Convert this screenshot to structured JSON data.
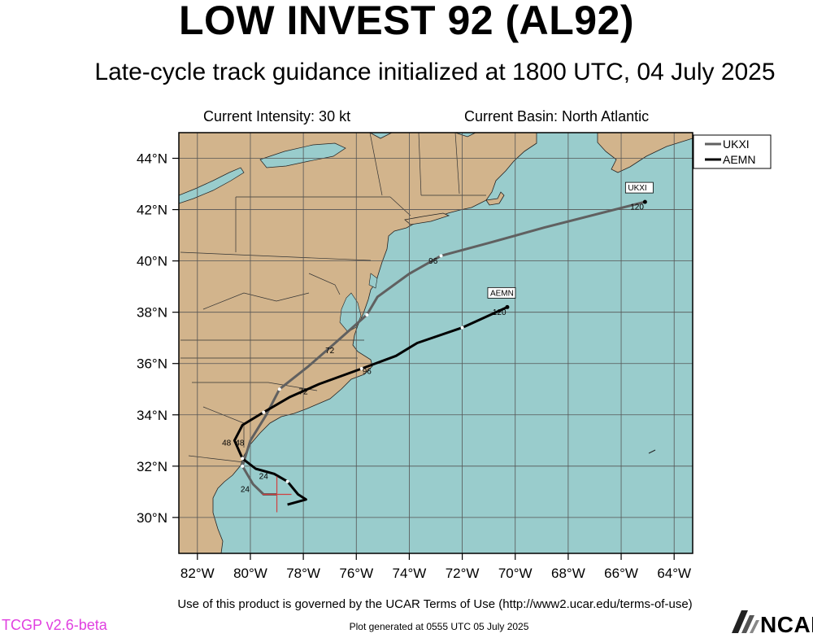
{
  "title": "LOW INVEST 92 (AL92)",
  "subtitle": "Late-cycle track guidance initialized at 1800 UTC, 04 July 2025",
  "current_intensity": "Current Intensity: 30 kt",
  "current_basin": "Current Basin: North Atlantic",
  "footer_terms": "Use of this product is governed by the UCAR Terms of Use (http://www2.ucar.edu/terms-of-use)",
  "footer_generated": "Plot generated at 0555 UTC   05 July 2025",
  "version": "TCGP v2.6-beta",
  "logo_text": "NCAR",
  "colors": {
    "land": "#d2b48c",
    "ocean": "#99cccc",
    "ukxi": "#606060",
    "aemn": "#000000",
    "version": "#e040e0"
  },
  "chart_data": {
    "type": "map-track",
    "lon_ticks": [
      {
        "value": -82,
        "label": "82°W"
      },
      {
        "value": -80,
        "label": "80°W"
      },
      {
        "value": -78,
        "label": "78°W"
      },
      {
        "value": -76,
        "label": "76°W"
      },
      {
        "value": -74,
        "label": "74°W"
      },
      {
        "value": -72,
        "label": "72°W"
      },
      {
        "value": -70,
        "label": "70°W"
      },
      {
        "value": -68,
        "label": "68°W"
      },
      {
        "value": -66,
        "label": "66°W"
      },
      {
        "value": -64,
        "label": "64°W"
      }
    ],
    "lat_ticks": [
      {
        "value": 44,
        "label": "44°N"
      },
      {
        "value": 42,
        "label": "42°N"
      },
      {
        "value": 40,
        "label": "40°N"
      },
      {
        "value": 38,
        "label": "38°N"
      },
      {
        "value": 36,
        "label": "36°N"
      },
      {
        "value": 34,
        "label": "34°N"
      },
      {
        "value": 32,
        "label": "32°N"
      },
      {
        "value": 30,
        "label": "30°N"
      }
    ],
    "lon_range": [
      -82.7,
      -63.3
    ],
    "lat_range": [
      28.6,
      45.0
    ],
    "initial_position": {
      "lon": -79.0,
      "lat": 30.9
    },
    "legend": [
      "UKXI",
      "AEMN"
    ],
    "series": [
      {
        "name": "UKXI",
        "color": "#606060",
        "points": [
          [
            -79.0,
            30.9
          ],
          [
            -79.5,
            30.9
          ],
          [
            -79.9,
            31.3
          ],
          [
            -80.3,
            32.0
          ],
          [
            -80.0,
            33.0
          ],
          [
            -79.4,
            34.0
          ],
          [
            -78.9,
            35.0
          ],
          [
            -77.8,
            35.9
          ],
          [
            -76.8,
            36.8
          ],
          [
            -75.6,
            37.9
          ],
          [
            -75.2,
            38.6
          ],
          [
            -74.0,
            39.5
          ],
          [
            -72.8,
            40.2
          ],
          [
            -71.0,
            40.7
          ],
          [
            -68.9,
            41.3
          ],
          [
            -65.1,
            42.3
          ]
        ],
        "hour_labels": [
          {
            "text": "24",
            "lon": -80.2,
            "lat": 31.0
          },
          {
            "text": "48",
            "lon": -80.4,
            "lat": 32.8
          },
          {
            "text": "72",
            "lon": -77.0,
            "lat": 36.4
          },
          {
            "text": "96",
            "lon": -73.1,
            "lat": 39.9
          },
          {
            "text": "120",
            "lon": -65.4,
            "lat": 42.0
          }
        ],
        "end_tag": "UKXI"
      },
      {
        "name": "AEMN",
        "color": "#000000",
        "points": [
          [
            -78.6,
            30.5
          ],
          [
            -77.9,
            30.7
          ],
          [
            -78.2,
            30.9
          ],
          [
            -78.6,
            31.4
          ],
          [
            -79.1,
            31.7
          ],
          [
            -79.8,
            31.9
          ],
          [
            -80.3,
            32.3
          ],
          [
            -80.6,
            33.0
          ],
          [
            -80.3,
            33.6
          ],
          [
            -79.5,
            34.1
          ],
          [
            -78.5,
            34.7
          ],
          [
            -77.4,
            35.2
          ],
          [
            -75.8,
            35.8
          ],
          [
            -74.5,
            36.3
          ],
          [
            -73.7,
            36.8
          ],
          [
            -72.0,
            37.4
          ],
          [
            -70.3,
            38.2
          ]
        ],
        "hour_labels": [
          {
            "text": "24",
            "lon": -79.5,
            "lat": 31.5
          },
          {
            "text": "48",
            "lon": -80.9,
            "lat": 32.8
          },
          {
            "text": "72",
            "lon": -78.0,
            "lat": 34.8
          },
          {
            "text": "96",
            "lon": -75.6,
            "lat": 35.6
          },
          {
            "text": "120",
            "lon": -70.6,
            "lat": 37.9
          }
        ],
        "end_tag": "AEMN"
      }
    ]
  }
}
